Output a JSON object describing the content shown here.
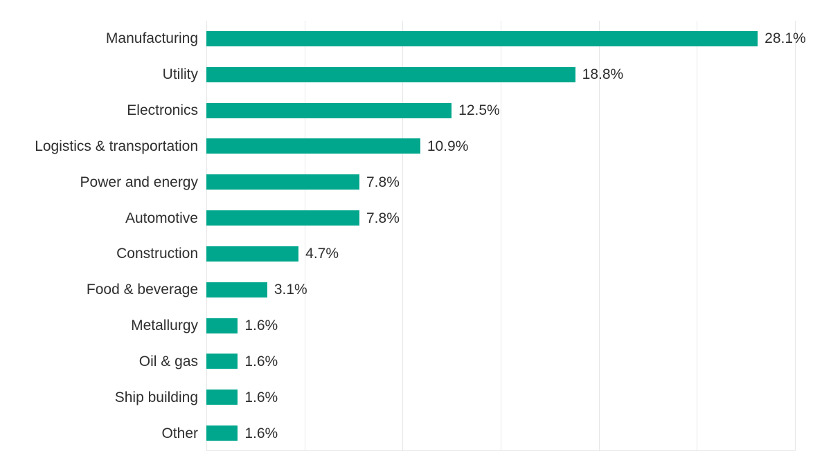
{
  "chart_data": {
    "type": "bar",
    "orientation": "horizontal",
    "title": "",
    "xlabel": "",
    "ylabel": "",
    "categories": [
      "Manufacturing",
      "Utility",
      "Electronics",
      "Logistics & transportation",
      "Power and energy",
      "Automotive",
      "Construction",
      "Food & beverage",
      "Metallurgy",
      "Oil & gas",
      "Ship building",
      "Other"
    ],
    "values": [
      28.1,
      18.8,
      12.5,
      10.9,
      7.8,
      7.8,
      4.7,
      3.1,
      1.6,
      1.6,
      1.6,
      1.6
    ],
    "value_labels": [
      "28.1%",
      "18.8%",
      "12.5%",
      "10.9%",
      "7.8%",
      "7.8%",
      "4.7%",
      "3.1%",
      "1.6%",
      "1.6%",
      "1.6%",
      "1.6%"
    ],
    "xlim": [
      0,
      30
    ],
    "gridline_step": 5,
    "grid": true,
    "legend": "none",
    "colors": {
      "bar": "#00a78d",
      "grid": "#e7e7e7",
      "text": "#2e2e2e",
      "background": "#ffffff"
    }
  }
}
